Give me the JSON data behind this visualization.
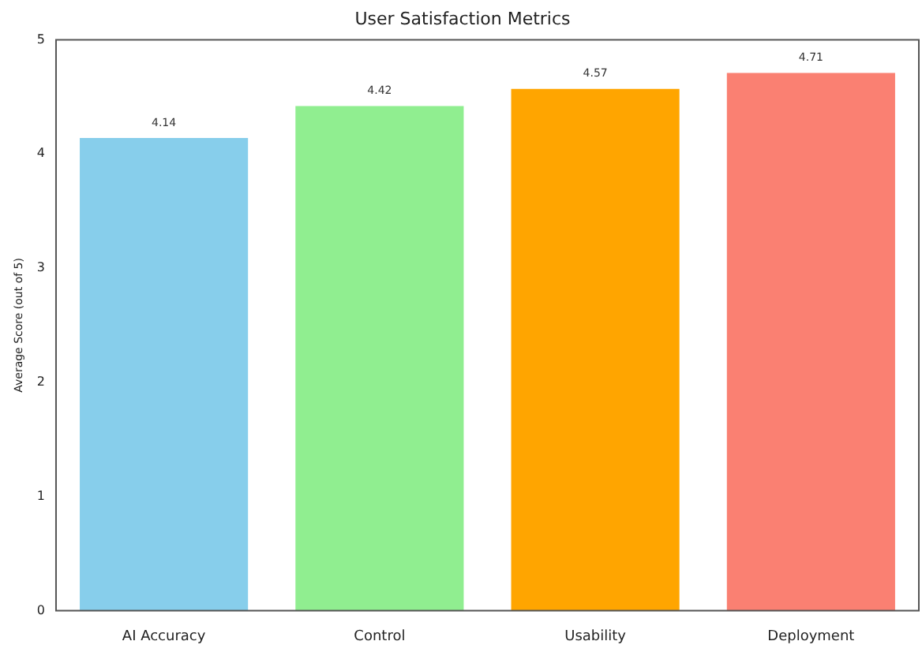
{
  "chart_data": {
    "type": "bar",
    "title": "User Satisfaction Metrics",
    "ylabel": "Average Score (out of 5)",
    "categories": [
      "AI Accuracy",
      "Control",
      "Usability",
      "Deployment"
    ],
    "values": [
      4.14,
      4.42,
      4.57,
      4.71
    ],
    "colors": [
      "#87ceeb",
      "#90ee90",
      "#ffa500",
      "#fa8072"
    ],
    "ylim": [
      0,
      5
    ],
    "yticks": [
      0,
      1,
      2,
      3,
      4,
      5
    ],
    "grid": false,
    "legend": false,
    "data_labels": true
  }
}
